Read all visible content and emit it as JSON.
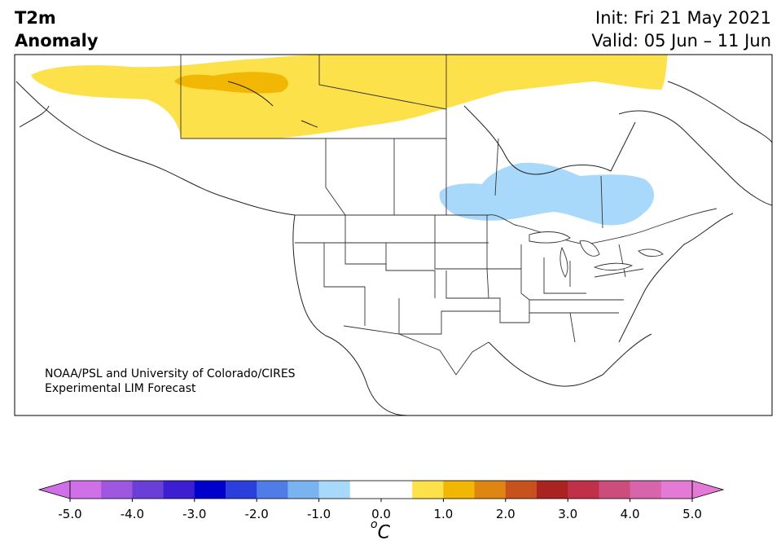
{
  "title": {
    "left_line1": "T2m",
    "left_line2": "Anomaly",
    "init": "Init: Fri 21 May 2021",
    "valid": "Valid: 05 Jun – 11 Jun"
  },
  "credit": {
    "line1": "NOAA/PSL and University of Colorado/CIRES",
    "line2": "Experimental LIM Forecast"
  },
  "map": {
    "region": "North America",
    "anomalies": [
      {
        "area": "northern Canada / Arctic",
        "category": "0.5 to 1.0",
        "color": "#fde14a"
      },
      {
        "area": "Northwest Territories / Great Slave Lake",
        "category": "1.0 to 1.5",
        "color": "#f2b705"
      },
      {
        "area": "Ontario / Hudson Bay south",
        "category": "-1.0 to -0.5",
        "color": "#a8d8fa"
      }
    ]
  },
  "colorbar": {
    "unit_symbol": "C",
    "unit_super": "o",
    "ticks": [
      "-5.0",
      "-4.0",
      "-3.0",
      "-2.0",
      "-1.0",
      "0.0",
      "1.0",
      "2.0",
      "3.0",
      "4.0",
      "5.0"
    ],
    "colors": [
      "#cf70e8",
      "#a057e0",
      "#6a3fd8",
      "#3b1fd0",
      "#0000cc",
      "#2a3fdc",
      "#4f7ce6",
      "#79b3f0",
      "#a8d8fa",
      "#ffffff",
      "#ffffff",
      "#fde14a",
      "#f2b705",
      "#de8512",
      "#c7521d",
      "#a92420",
      "#c03048",
      "#cc4c7c",
      "#d865ab",
      "#e47ad5"
    ],
    "under_color": "#cf70e8",
    "over_color": "#e47ad5"
  }
}
